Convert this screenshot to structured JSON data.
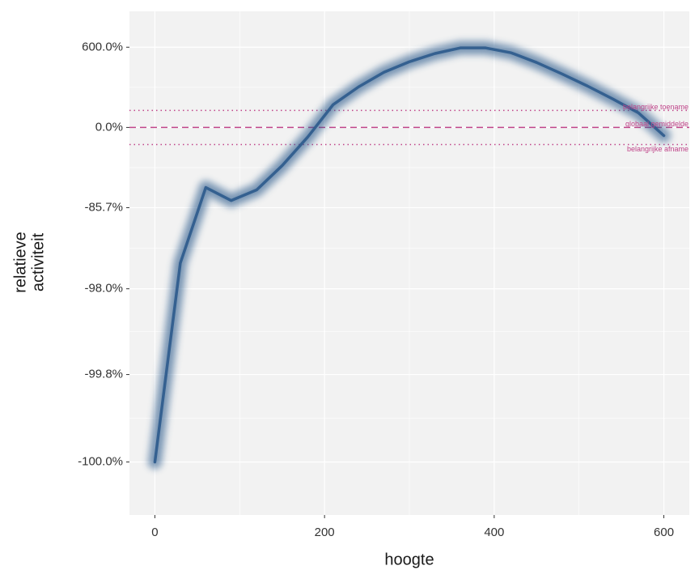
{
  "chart_data": {
    "type": "line",
    "xlabel": "hoogte",
    "ylabel": [
      "relatieve",
      "activiteit"
    ],
    "yscale": "log-ratio",
    "x": [
      0,
      30,
      60,
      90,
      120,
      150,
      180,
      210,
      240,
      270,
      300,
      330,
      360,
      390,
      420,
      450,
      480,
      510,
      540,
      570,
      600
    ],
    "series": [
      {
        "color": "#2c5a8c",
        "values": [
          -99.97,
          -96.26,
          -76.7,
          -83.0,
          -78.0,
          -60.4,
          -21.1,
          73.4,
          167,
          281,
          392,
          500,
          588,
          588,
          511,
          383,
          266,
          173,
          99,
          42.6,
          -18
        ]
      }
    ],
    "reference_lines": [
      {
        "value": 51,
        "label": "belangrijke toename",
        "style": "dotted"
      },
      {
        "value": 0,
        "label": "globaal gemiddelde",
        "style": "dashed"
      },
      {
        "value": -34,
        "label": "belangrijke afname",
        "style": "dotted"
      }
    ],
    "reference_color": "#c0458a",
    "xlim": [
      -30,
      630
    ],
    "xticks": [
      0,
      200,
      400,
      600
    ],
    "ylim": [
      -99.9917,
      1570
    ],
    "yticks": [
      {
        "value": 600,
        "label": "600.0%"
      },
      {
        "value": 0,
        "label": "0.0%"
      },
      {
        "value": -85.7,
        "label": "-85.7%"
      },
      {
        "value": -98,
        "label": "-98.0%"
      },
      {
        "value": -99.75,
        "label": "-99.8%"
      },
      {
        "value": -99.97,
        "label": "-100.0%"
      }
    ],
    "grid": true
  }
}
